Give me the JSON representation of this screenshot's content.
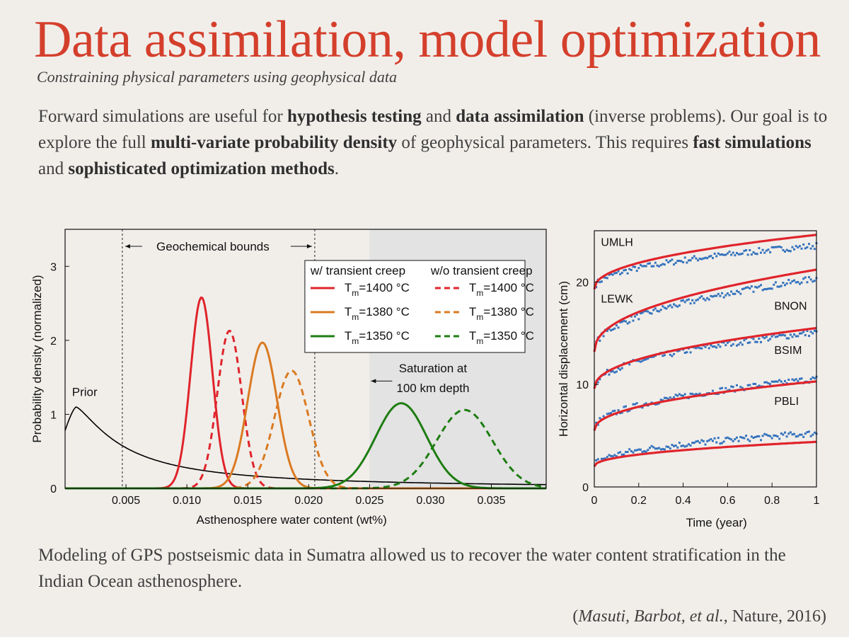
{
  "slide": {
    "title": "Data assimilation, model optimization",
    "subtitle": "Constraining physical parameters using geophysical data",
    "intro": [
      {
        "text": "Forward simulations are useful for ",
        "bold": false
      },
      {
        "text": "hypothesis testing",
        "bold": true
      },
      {
        "text": " and ",
        "bold": false
      },
      {
        "text": "data assimilation",
        "bold": true
      },
      {
        "text": " (inverse problems). Our goal is to explore the full ",
        "bold": false
      },
      {
        "text": "multi-variate probability density",
        "bold": true
      },
      {
        "text": " of geophysical parameters. This requires ",
        "bold": false
      },
      {
        "text": "fast simulations",
        "bold": true
      },
      {
        "text": " and ",
        "bold": false
      },
      {
        "text": "sophisticated optimization methods",
        "bold": true
      },
      {
        "text": ".",
        "bold": false
      }
    ],
    "conclusion": "Modeling of GPS postseismic data in Sumatra allowed us to recover the water content stratification in the Indian Ocean asthenosphere.",
    "citation": {
      "open": "(",
      "authors": "Masuti, Barbot, et al.",
      "rest": ", Nature, 2016)"
    }
  },
  "chart_data": [
    {
      "type": "line",
      "xlabel": "Asthenosphere water content (wt%)",
      "ylabel": "Probability density (normalized)",
      "xlim": [
        0,
        0.0395
      ],
      "ylim": [
        0,
        3.5
      ],
      "xticks": [
        {
          "value": 0.005,
          "label": "0.005"
        },
        {
          "value": 0.01,
          "label": "0.010"
        },
        {
          "value": 0.015,
          "label": "0.015"
        },
        {
          "value": 0.02,
          "label": "0.020"
        },
        {
          "value": 0.025,
          "label": "0.025"
        },
        {
          "value": 0.03,
          "label": "0.030"
        },
        {
          "value": 0.035,
          "label": "0.035"
        }
      ],
      "yticks": [
        {
          "value": 0,
          "label": "0"
        },
        {
          "value": 1,
          "label": "1"
        },
        {
          "value": 2,
          "label": "2"
        },
        {
          "value": 3,
          "label": "3"
        }
      ],
      "annotations": {
        "geochemical_bounds": {
          "label": "Geochemical bounds",
          "x_range": [
            0.0047,
            0.0205
          ]
        },
        "saturation": {
          "label_lines": [
            "Saturation at",
            "100 km depth"
          ],
          "x_start": 0.025
        },
        "prior_label": "Prior"
      },
      "legend": {
        "placement": "top-right",
        "headers": [
          "w/ transient creep",
          "w/o transient creep"
        ],
        "rows": [
          {
            "tm": "1400",
            "unit": "°C"
          },
          {
            "tm": "1380",
            "unit": "°C"
          },
          {
            "tm": "1350",
            "unit": "°C"
          }
        ],
        "subscript": "m",
        "prefix": "T"
      },
      "series": [
        {
          "kind": "prior",
          "color": "#000000",
          "dashed": false,
          "peak_x": 0.0009,
          "peak_y": 1.1
        },
        {
          "kind": "with-creep",
          "tm": "1400",
          "color": "#e0242b",
          "dashed": false,
          "peak_x": 0.0112,
          "peak_y": 2.58,
          "width": 0.0009
        },
        {
          "kind": "without-creep",
          "tm": "1400",
          "color": "#e0242b",
          "dashed": true,
          "peak_x": 0.0135,
          "peak_y": 2.13,
          "width": 0.001
        },
        {
          "kind": "with-creep",
          "tm": "1380",
          "color": "#da7a21",
          "dashed": false,
          "peak_x": 0.0162,
          "peak_y": 1.97,
          "width": 0.0012
        },
        {
          "kind": "without-creep",
          "tm": "1380",
          "color": "#da7a21",
          "dashed": true,
          "peak_x": 0.0186,
          "peak_y": 1.59,
          "width": 0.0014
        },
        {
          "kind": "with-creep",
          "tm": "1350",
          "color": "#1e7d12",
          "dashed": false,
          "peak_x": 0.0276,
          "peak_y": 1.15,
          "width": 0.0021
        },
        {
          "kind": "without-creep",
          "tm": "1350",
          "color": "#1e7d12",
          "dashed": true,
          "peak_x": 0.0328,
          "peak_y": 1.06,
          "width": 0.0023
        }
      ]
    },
    {
      "type": "scatter",
      "xlabel": "Time (year)",
      "ylabel": "Horizontal displacement (cm)",
      "xlim": [
        0,
        1
      ],
      "ylim": [
        0,
        25
      ],
      "xticks": [
        {
          "value": 0,
          "label": "0"
        },
        {
          "value": 0.2,
          "label": "0.2"
        },
        {
          "value": 0.4,
          "label": "0.4"
        },
        {
          "value": 0.6,
          "label": "0.6"
        },
        {
          "value": 0.8,
          "label": "0.8"
        },
        {
          "value": 1,
          "label": "1"
        }
      ],
      "yticks": [
        {
          "value": 0,
          "label": "0"
        },
        {
          "value": 10,
          "label": "10"
        },
        {
          "value": 20,
          "label": "20"
        }
      ],
      "model_color": "#e0242b",
      "data_color": "#2266b8",
      "stations": [
        {
          "name": "UMLH",
          "label_x": 0.03,
          "label_y": 23.5,
          "a": 19.3,
          "b": 5.3,
          "obs_scale": 0.8
        },
        {
          "name": "LEWK",
          "label_x": 0.03,
          "label_y": 18.0,
          "a": 13.2,
          "b": 8.0,
          "obs_scale": 0.89
        },
        {
          "name": "BNON",
          "label_x": 0.81,
          "label_y": 17.3,
          "a": 9.6,
          "b": 5.9,
          "obs_scale": 0.93
        },
        {
          "name": "BSIM",
          "label_x": 0.81,
          "label_y": 13.0,
          "a": 5.5,
          "b": 4.8,
          "obs_scale": 1.05
        },
        {
          "name": "PBLI",
          "label_x": 0.81,
          "label_y": 8.0,
          "a": 2.0,
          "b": 2.4,
          "obs_scale": 1.35
        }
      ]
    }
  ]
}
